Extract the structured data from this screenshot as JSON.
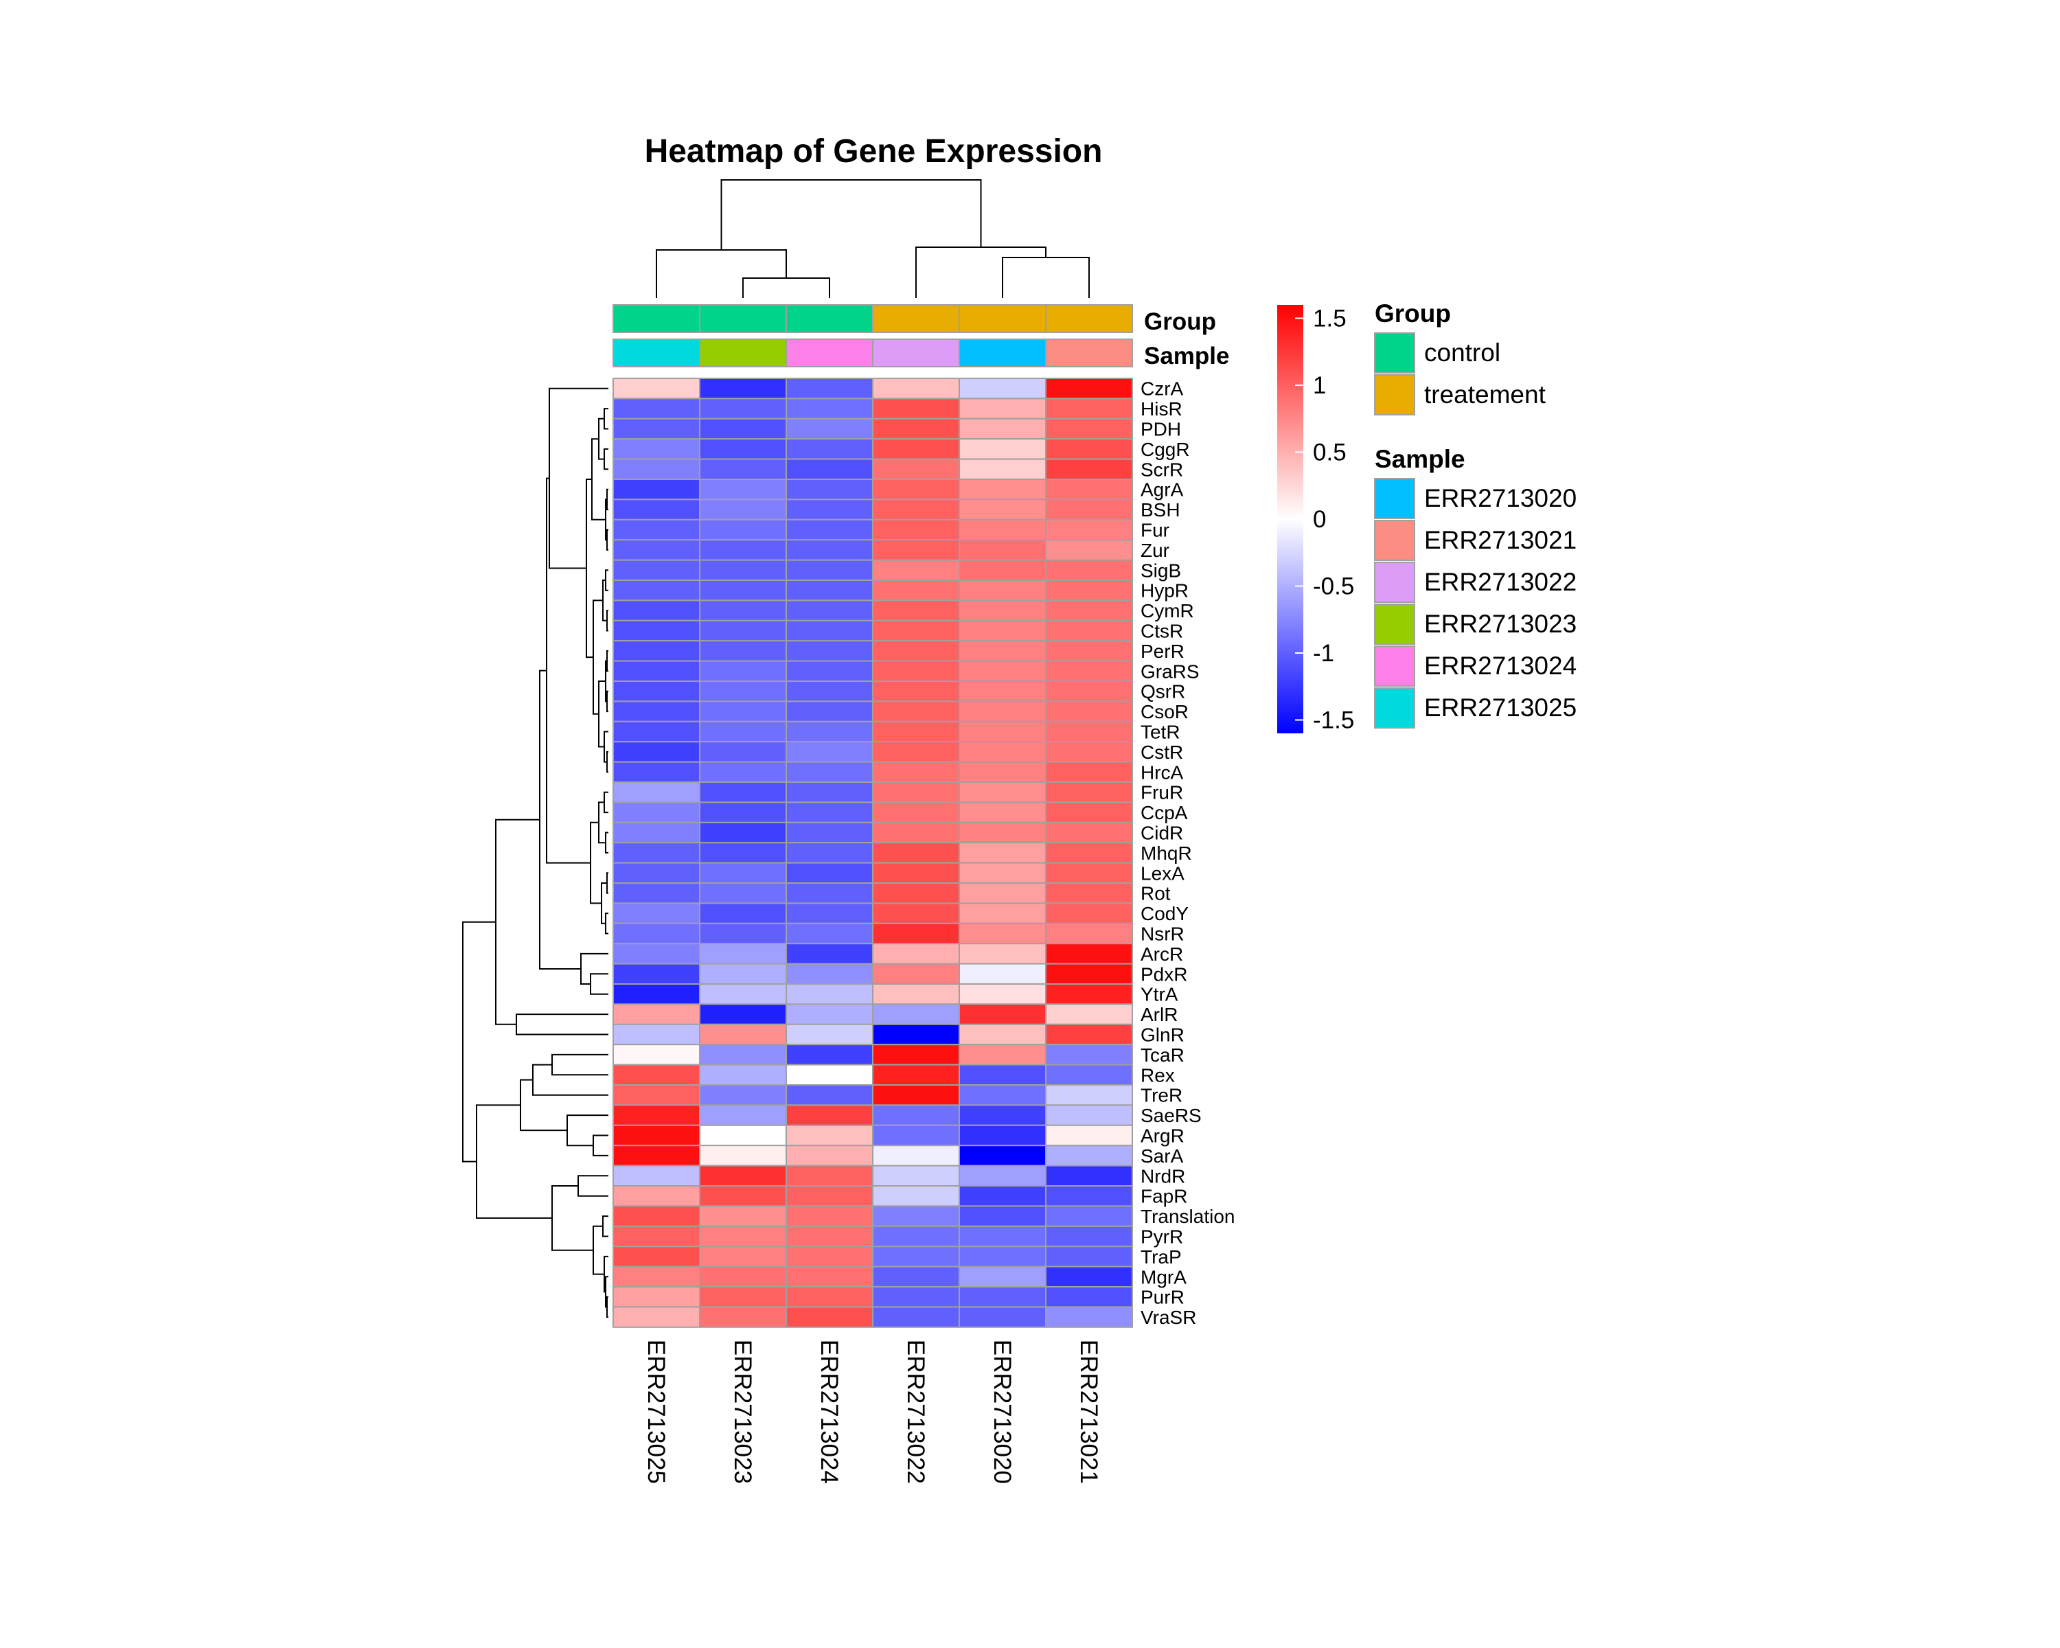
{
  "chart_data": {
    "type": "heatmap",
    "title": "Heatmap of Gene Expression",
    "columns": [
      "ERR2713025",
      "ERR2713023",
      "ERR2713024",
      "ERR2713022",
      "ERR2713020",
      "ERR2713021"
    ],
    "rows": [
      "CzrA",
      "HisR",
      "PDH",
      "CggR",
      "ScrR",
      "AgrA",
      "BSH",
      "Fur",
      "Zur",
      "SigB",
      "HypR",
      "CymR",
      "CtsR",
      "PerR",
      "GraRS",
      "QsrR",
      "CsoR",
      "TetR",
      "CstR",
      "HrcA",
      "FruR",
      "CcpA",
      "CidR",
      "MhqR",
      "LexA",
      "Rot",
      "CodY",
      "NsrR",
      "ArcR",
      "PdxR",
      "YtrA",
      "ArlR",
      "GlnR",
      "TcaR",
      "Rex",
      "TreR",
      "SaeRS",
      "ArgR",
      "SarA",
      "NrdR",
      "FapR",
      "Translation",
      "PyrR",
      "TraP",
      "MgrA",
      "PurR",
      "VraSR"
    ],
    "values": [
      [
        0.3,
        -1.3,
        -1.0,
        0.4,
        -0.3,
        1.5
      ],
      [
        -1.0,
        -1.0,
        -0.9,
        1.1,
        0.5,
        1.0
      ],
      [
        -1.0,
        -1.1,
        -0.8,
        1.1,
        0.5,
        1.0
      ],
      [
        -0.8,
        -1.1,
        -1.0,
        1.1,
        0.3,
        1.1
      ],
      [
        -0.8,
        -1.0,
        -1.1,
        0.9,
        0.3,
        1.2
      ],
      [
        -1.2,
        -0.8,
        -1.0,
        1.0,
        0.7,
        0.9
      ],
      [
        -1.1,
        -0.8,
        -1.0,
        1.0,
        0.7,
        0.9
      ],
      [
        -1.0,
        -0.9,
        -1.0,
        1.0,
        0.8,
        0.8
      ],
      [
        -1.0,
        -1.0,
        -1.0,
        1.0,
        0.9,
        0.7
      ],
      [
        -1.0,
        -1.0,
        -1.0,
        0.8,
        0.9,
        0.9
      ],
      [
        -1.0,
        -1.0,
        -1.0,
        0.9,
        0.8,
        0.9
      ],
      [
        -1.1,
        -1.0,
        -1.0,
        1.0,
        0.8,
        0.9
      ],
      [
        -1.1,
        -1.0,
        -1.0,
        1.0,
        0.8,
        0.9
      ],
      [
        -1.1,
        -1.0,
        -1.0,
        1.0,
        0.8,
        0.9
      ],
      [
        -1.1,
        -0.9,
        -1.0,
        1.0,
        0.8,
        0.9
      ],
      [
        -1.1,
        -0.9,
        -1.0,
        1.0,
        0.8,
        0.9
      ],
      [
        -1.1,
        -0.9,
        -1.0,
        1.0,
        0.8,
        0.9
      ],
      [
        -1.1,
        -0.9,
        -0.9,
        1.0,
        0.8,
        0.9
      ],
      [
        -1.2,
        -1.0,
        -0.8,
        1.0,
        0.8,
        0.9
      ],
      [
        -1.1,
        -0.9,
        -0.9,
        0.9,
        0.8,
        1.0
      ],
      [
        -0.6,
        -1.1,
        -1.0,
        0.9,
        0.7,
        1.0
      ],
      [
        -0.8,
        -1.1,
        -1.0,
        0.9,
        0.7,
        1.0
      ],
      [
        -0.8,
        -1.2,
        -1.0,
        0.9,
        0.8,
        0.9
      ],
      [
        -1.0,
        -1.1,
        -1.0,
        1.1,
        0.6,
        1.0
      ],
      [
        -1.0,
        -0.9,
        -1.1,
        1.1,
        0.6,
        1.0
      ],
      [
        -1.0,
        -0.9,
        -1.0,
        1.1,
        0.6,
        1.0
      ],
      [
        -0.8,
        -1.1,
        -1.0,
        1.1,
        0.6,
        1.0
      ],
      [
        -0.9,
        -1.0,
        -0.9,
        1.3,
        0.7,
        0.8
      ],
      [
        -0.8,
        -0.6,
        -1.2,
        0.5,
        0.4,
        1.5
      ],
      [
        -1.2,
        -0.5,
        -0.7,
        0.8,
        -0.1,
        1.5
      ],
      [
        -1.4,
        -0.4,
        -0.4,
        0.4,
        0.2,
        1.4
      ],
      [
        0.6,
        -1.4,
        -0.5,
        -0.6,
        1.3,
        0.3
      ],
      [
        -0.4,
        0.7,
        -0.3,
        -1.6,
        0.4,
        1.2
      ],
      [
        0.05,
        -0.7,
        -1.2,
        1.5,
        0.7,
        -0.8
      ],
      [
        1.1,
        -0.5,
        0.0,
        1.4,
        -1.1,
        -0.9
      ],
      [
        1.0,
        -0.8,
        -1.0,
        1.5,
        -0.9,
        -0.3
      ],
      [
        1.4,
        -0.6,
        1.2,
        -0.9,
        -1.2,
        -0.4
      ],
      [
        1.5,
        0.0,
        0.4,
        -0.9,
        -1.3,
        0.1
      ],
      [
        1.5,
        0.1,
        0.5,
        -0.1,
        -1.6,
        -0.5
      ],
      [
        -0.4,
        1.3,
        1.0,
        -0.3,
        -0.6,
        -1.3
      ],
      [
        0.6,
        1.1,
        1.0,
        -0.3,
        -1.2,
        -1.1
      ],
      [
        1.1,
        0.7,
        0.9,
        -0.8,
        -1.1,
        -0.9
      ],
      [
        1.0,
        0.8,
        0.9,
        -0.9,
        -0.9,
        -1.0
      ],
      [
        1.1,
        0.8,
        0.9,
        -0.9,
        -0.9,
        -1.0
      ],
      [
        0.8,
        0.9,
        0.9,
        -1.0,
        -0.6,
        -1.3
      ],
      [
        0.6,
        1.0,
        1.0,
        -1.0,
        -1.0,
        -1.1
      ],
      [
        0.5,
        0.9,
        1.1,
        -1.0,
        -1.0,
        -0.7
      ]
    ],
    "scale": {
      "min": -1.6,
      "max": 1.6,
      "ticks": [
        1.5,
        1,
        0.5,
        0,
        -0.5,
        -1,
        -1.5
      ],
      "colors": [
        "#0000ff",
        "#ffffff",
        "#ff0000"
      ]
    },
    "annotations": {
      "Group": {
        "label": "Group",
        "values": [
          "control",
          "control",
          "control",
          "treatement",
          "treatement",
          "treatement"
        ]
      },
      "Sample": {
        "label": "Sample",
        "values": [
          "ERR2713025",
          "ERR2713023",
          "ERR2713024",
          "ERR2713022",
          "ERR2713020",
          "ERR2713021"
        ]
      }
    },
    "legend": {
      "group": {
        "title": "Group",
        "items": [
          {
            "label": "control",
            "color": "#00d48a"
          },
          {
            "label": "treatement",
            "color": "#e8ad00"
          }
        ]
      },
      "sample": {
        "title": "Sample",
        "items": [
          {
            "label": "ERR2713020",
            "color": "#00c0ff"
          },
          {
            "label": "ERR2713021",
            "color": "#fc8d82"
          },
          {
            "label": "ERR2713022",
            "color": "#dc9cf8"
          },
          {
            "label": "ERR2713023",
            "color": "#96cd00"
          },
          {
            "label": "ERR2713024",
            "color": "#fc80e8"
          },
          {
            "label": "ERR2713025",
            "color": "#00dadf"
          }
        ]
      }
    }
  }
}
